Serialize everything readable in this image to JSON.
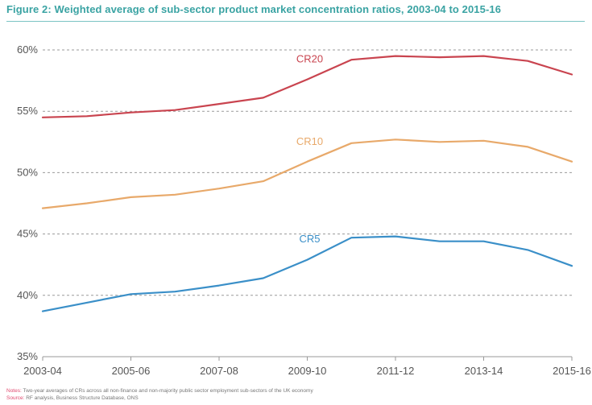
{
  "figure": {
    "title": "Figure 2: Weighted average of sub-sector product market concentration ratios, 2003-04 to 2015-16",
    "notes_label": "Notes:",
    "notes_text": "Two-year averages of CRs across all non-finance and non-majority public sector employment sub-sectors of the UK economy",
    "source_label": "Source:",
    "source_text": "RF analysis, Business Structure Database, ONS"
  },
  "chart_data": {
    "type": "line",
    "title": "Figure 2: Weighted average of sub-sector product market concentration ratios, 2003-04 to 2015-16",
    "xlabel": "",
    "ylabel": "",
    "x": [
      "2003-04",
      "2004-05",
      "2005-06",
      "2006-07",
      "2007-08",
      "2008-09",
      "2009-10",
      "2010-11",
      "2011-12",
      "2012-13",
      "2013-14",
      "2014-15",
      "2015-16"
    ],
    "x_tick_labels": [
      "2003-04",
      "2005-06",
      "2007-08",
      "2009-10",
      "2011-12",
      "2013-14",
      "2015-16"
    ],
    "ylim": [
      35,
      60
    ],
    "y_ticks": [
      35,
      40,
      45,
      50,
      55,
      60
    ],
    "y_tick_labels": [
      "35%",
      "40%",
      "45%",
      "50%",
      "55%",
      "60%"
    ],
    "grid": "horizontal-dashed",
    "legend": "inline-labels",
    "series": [
      {
        "name": "CR20",
        "color": "#c9444f",
        "values": [
          54.5,
          54.6,
          54.9,
          55.1,
          55.6,
          56.1,
          57.6,
          59.2,
          59.5,
          59.4,
          59.5,
          59.1,
          58.0
        ]
      },
      {
        "name": "CR10",
        "color": "#e8a96a",
        "values": [
          47.1,
          47.5,
          48.0,
          48.2,
          48.7,
          49.3,
          50.9,
          52.4,
          52.7,
          52.5,
          52.6,
          52.1,
          50.9
        ]
      },
      {
        "name": "CR5",
        "color": "#3a8fc8",
        "values": [
          38.7,
          39.4,
          40.1,
          40.3,
          40.8,
          41.4,
          42.9,
          44.7,
          44.8,
          44.4,
          44.4,
          43.7,
          42.4
        ]
      }
    ]
  }
}
